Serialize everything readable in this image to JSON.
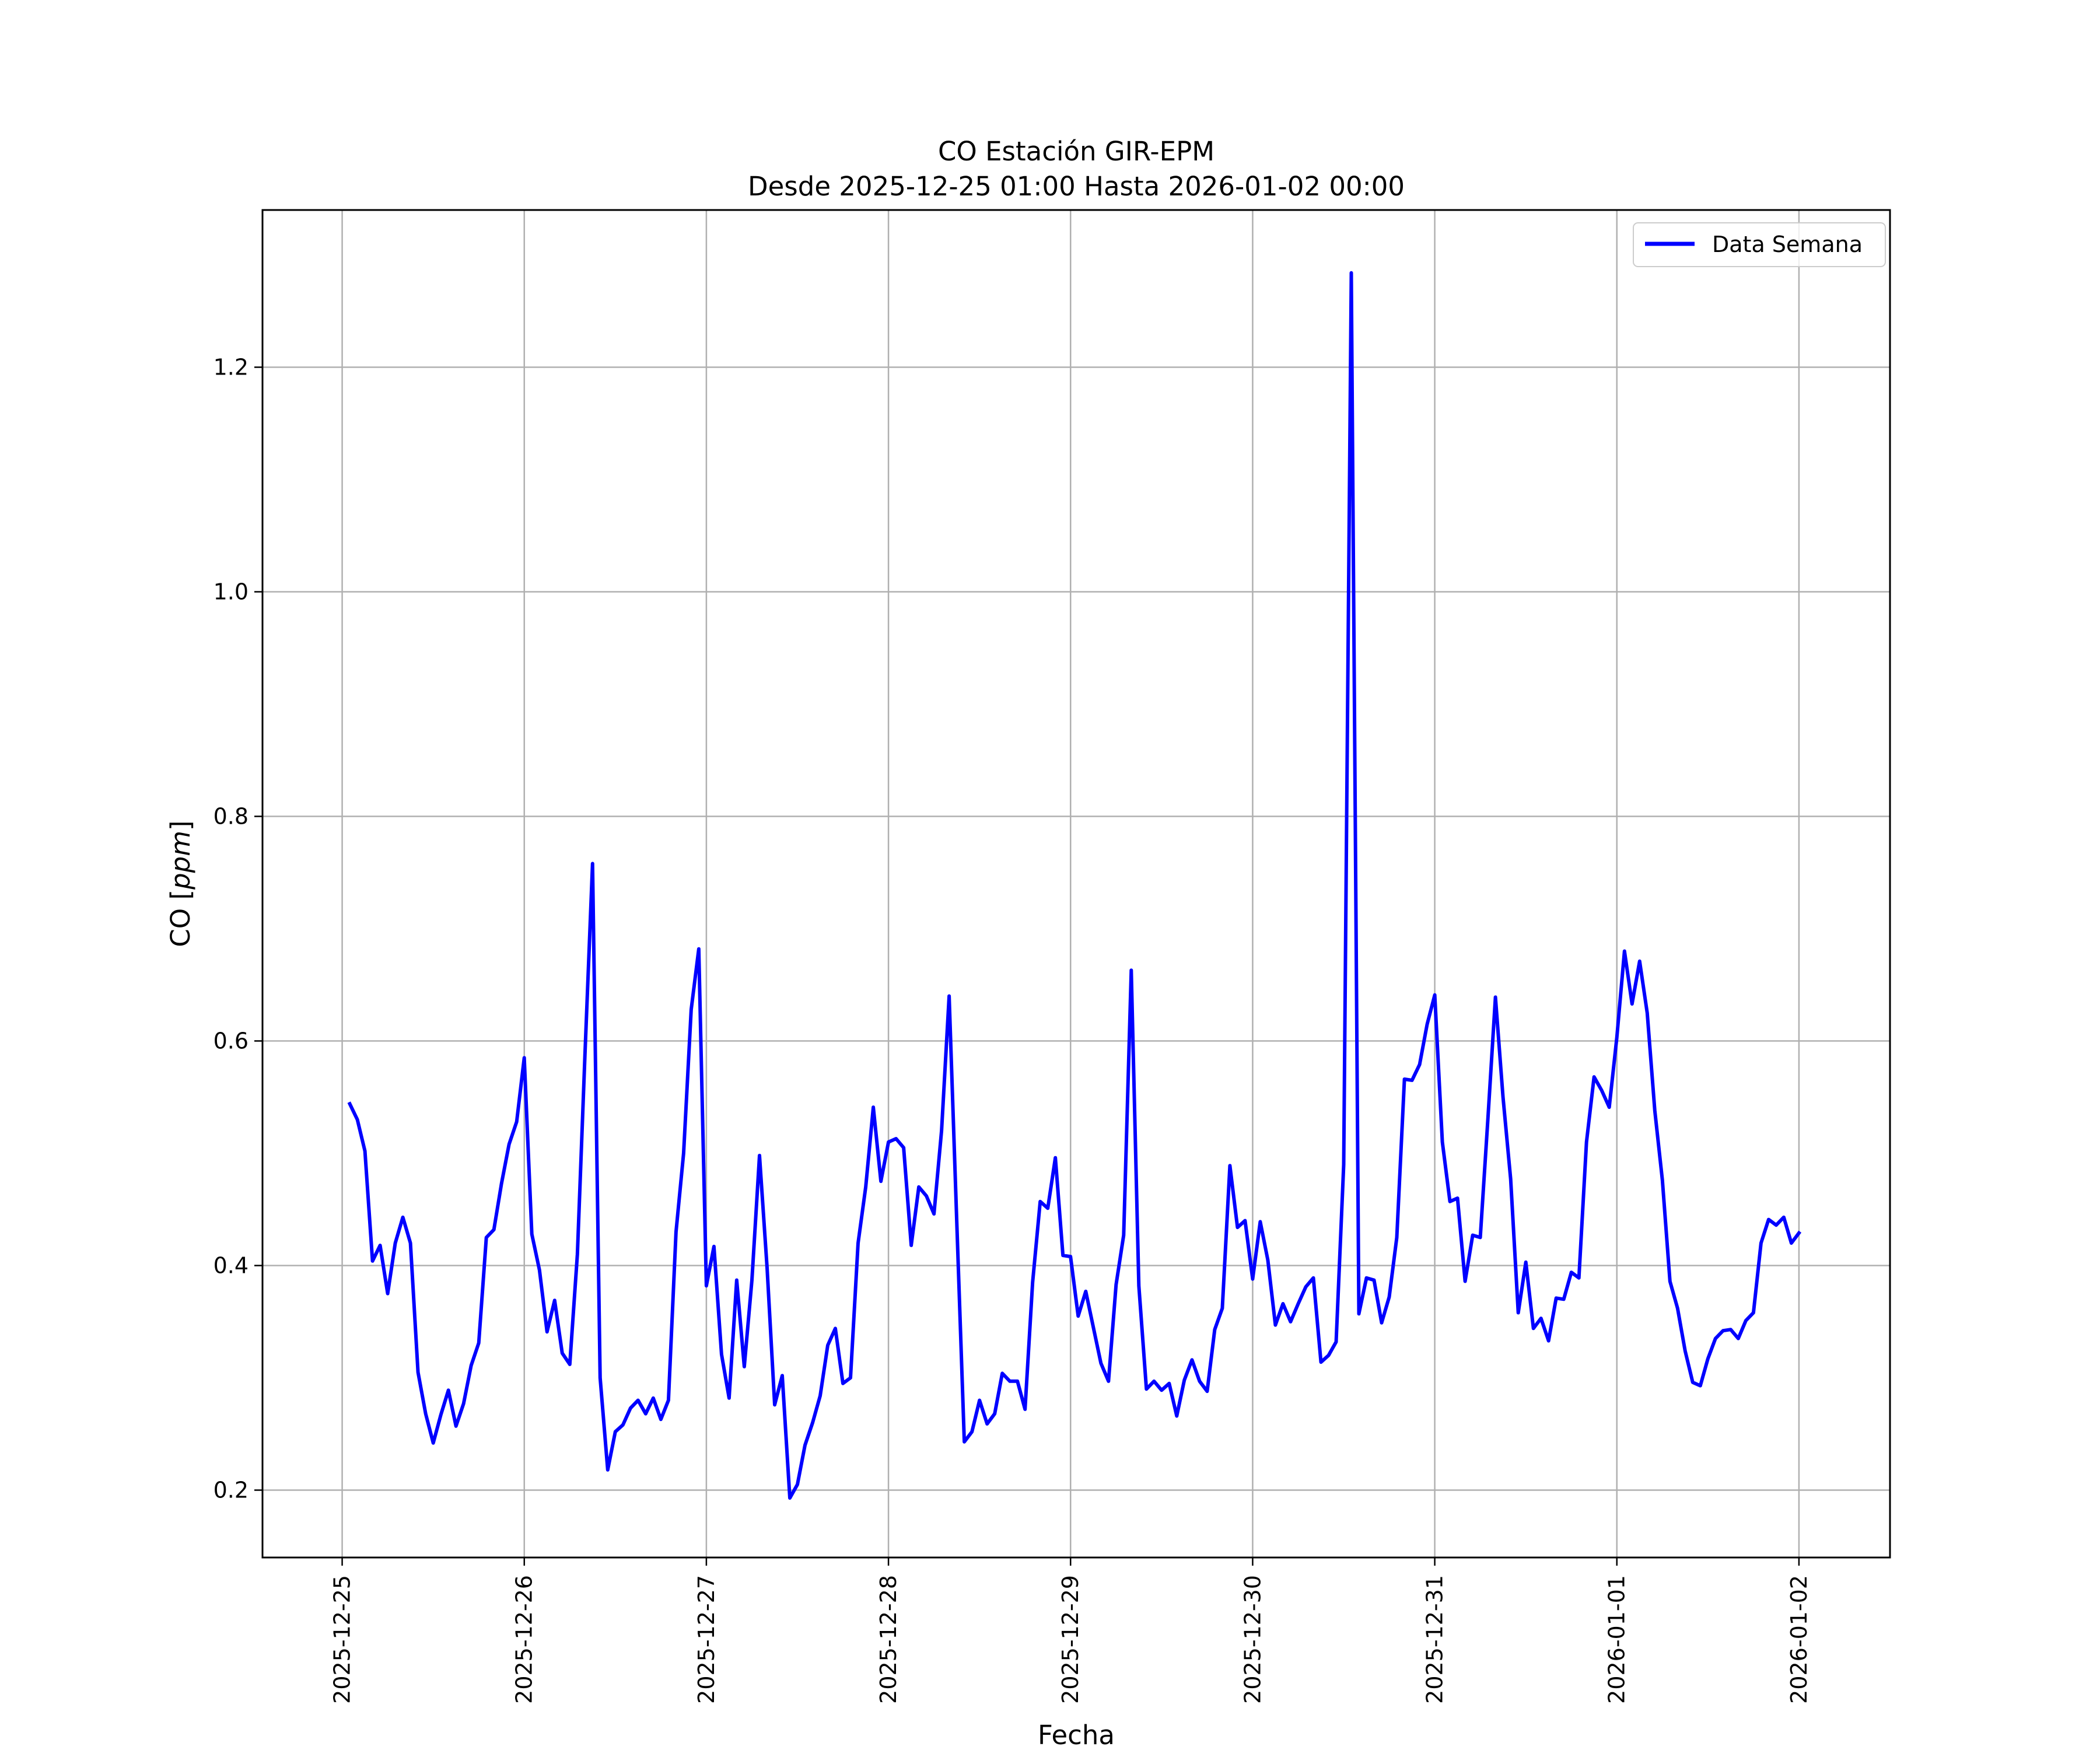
{
  "chart_data": {
    "type": "line",
    "title": "CO Estación GIR-EPM",
    "subtitle": "Desde 2025-12-25 01:00 Hasta 2026-01-02 00:00",
    "xlabel": "Fecha",
    "ylabel_prefix": "CO [",
    "ylabel_unit": "ppm",
    "ylabel_suffix": "]",
    "x_start": "2025-12-25 01:00",
    "x_step_hours": 1,
    "x_ticks": [
      "2025-12-25",
      "2025-12-26",
      "2025-12-27",
      "2025-12-28",
      "2025-12-29",
      "2025-12-30",
      "2025-12-31",
      "2026-01-01",
      "2026-01-02"
    ],
    "xlim": [
      "2025-12-24 13:30",
      "2026-01-02 12:00"
    ],
    "y_ticks": [
      "0.2",
      "0.4",
      "0.6",
      "0.8",
      "1.0",
      "1.2"
    ],
    "ylim": [
      0.14,
      1.34
    ],
    "grid": true,
    "legend_position": "top-right",
    "line_color": "#0000ff",
    "series": [
      {
        "name": "Data Semana",
        "values": [
          0.544,
          0.53,
          0.502,
          0.404,
          0.418,
          0.375,
          0.42,
          0.443,
          0.42,
          0.305,
          0.268,
          0.242,
          0.267,
          0.289,
          0.257,
          0.277,
          0.311,
          0.331,
          0.425,
          0.432,
          0.473,
          0.508,
          0.528,
          0.585,
          0.428,
          0.396,
          0.341,
          0.369,
          0.322,
          0.312,
          0.41,
          0.588,
          0.758,
          0.3,
          0.218,
          0.252,
          0.258,
          0.273,
          0.28,
          0.268,
          0.282,
          0.263,
          0.28,
          0.43,
          0.5,
          0.628,
          0.682,
          0.382,
          0.417,
          0.321,
          0.282,
          0.387,
          0.31,
          0.387,
          0.498,
          0.398,
          0.276,
          0.302,
          0.193,
          0.205,
          0.24,
          0.26,
          0.284,
          0.329,
          0.344,
          0.295,
          0.3,
          0.42,
          0.47,
          0.541,
          0.475,
          0.51,
          0.513,
          0.505,
          0.418,
          0.47,
          0.462,
          0.446,
          0.52,
          0.64,
          0.44,
          0.243,
          0.252,
          0.28,
          0.259,
          0.268,
          0.304,
          0.297,
          0.297,
          0.272,
          0.385,
          0.457,
          0.451,
          0.496,
          0.409,
          0.408,
          0.355,
          0.377,
          0.345,
          0.313,
          0.297,
          0.383,
          0.427,
          0.663,
          0.382,
          0.29,
          0.297,
          0.289,
          0.295,
          0.266,
          0.298,
          0.316,
          0.297,
          0.288,
          0.343,
          0.362,
          0.489,
          0.434,
          0.44,
          0.388,
          0.439,
          0.405,
          0.347,
          0.366,
          0.35,
          0.366,
          0.381,
          0.389,
          0.314,
          0.32,
          0.332,
          0.49,
          1.284,
          0.357,
          0.389,
          0.387,
          0.349,
          0.372,
          0.425,
          0.566,
          0.565,
          0.579,
          0.615,
          0.641,
          0.51,
          0.457,
          0.46,
          0.386,
          0.427,
          0.425,
          0.53,
          0.639,
          0.55,
          0.477,
          0.358,
          0.403,
          0.344,
          0.353,
          0.333,
          0.371,
          0.37,
          0.394,
          0.389,
          0.51,
          0.568,
          0.556,
          0.541,
          0.603,
          0.68,
          0.633,
          0.671,
          0.625,
          0.538,
          0.476,
          0.386,
          0.362,
          0.324,
          0.296,
          0.293,
          0.317,
          0.335,
          0.342,
          0.343,
          0.335,
          0.351,
          0.358,
          0.42,
          0.441,
          0.436,
          0.443,
          0.42,
          0.429
        ]
      }
    ]
  }
}
